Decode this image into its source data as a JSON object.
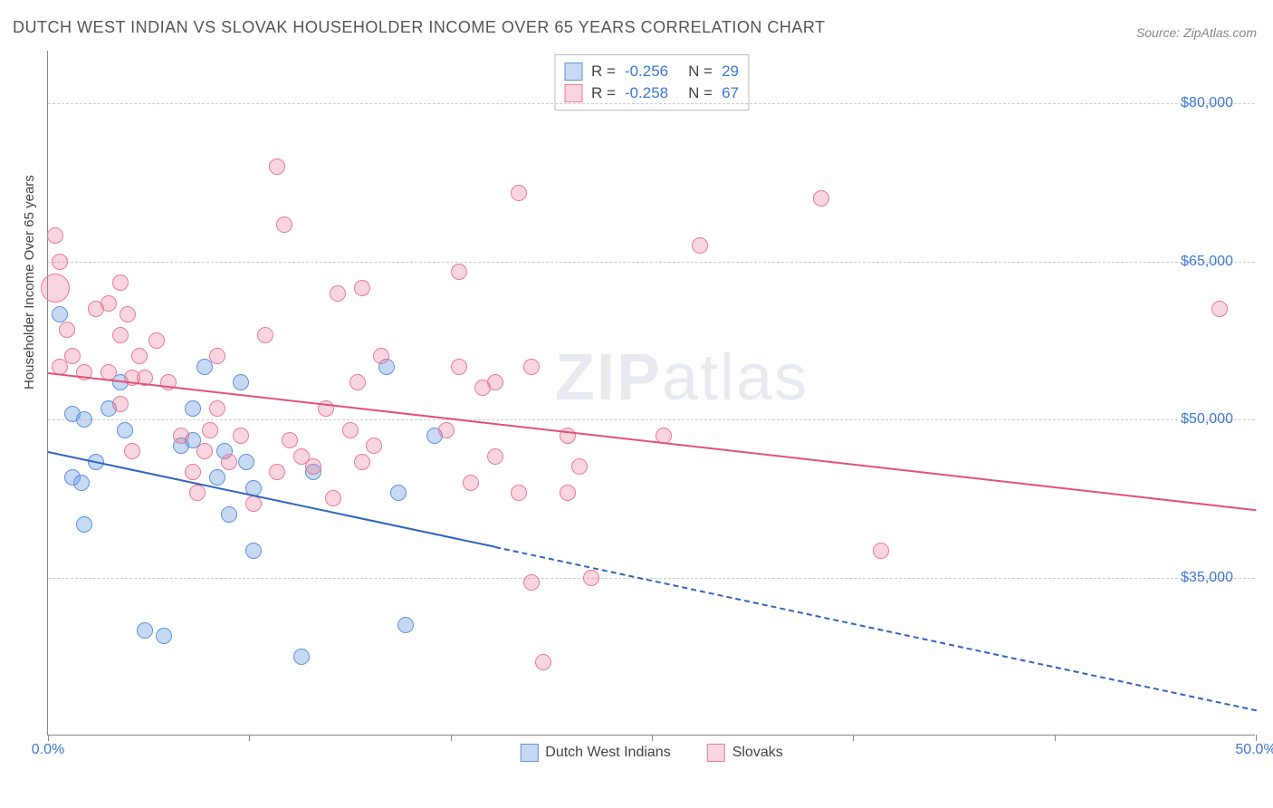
{
  "title": "DUTCH WEST INDIAN VS SLOVAK HOUSEHOLDER INCOME OVER 65 YEARS CORRELATION CHART",
  "source": "Source: ZipAtlas.com",
  "ylabel": "Householder Income Over 65 years",
  "watermark_bold": "ZIP",
  "watermark_rest": "atlas",
  "chart": {
    "type": "scatter",
    "xlim": [
      0,
      50
    ],
    "ylim": [
      20000,
      85000
    ],
    "x_ticks": [
      0,
      8.33,
      16.67,
      25,
      33.33,
      41.67,
      50
    ],
    "x_tick_labels": [
      "0.0%",
      "",
      "",
      "",
      "",
      "",
      "50.0%"
    ],
    "y_grid": [
      35000,
      50000,
      65000,
      80000
    ],
    "y_grid_labels": [
      "$35,000",
      "$50,000",
      "$65,000",
      "$80,000"
    ],
    "background_color": "#ffffff",
    "grid_color": "#cccccc",
    "series": [
      {
        "name": "Dutch West Indians",
        "color_fill": "rgba(94,146,220,0.35)",
        "color_stroke": "#5e92dc",
        "r_value": "-0.256",
        "n_value": "29",
        "marker_radius": 9,
        "trend": {
          "x1": 0,
          "y1": 47000,
          "x2": 18.5,
          "y2": 38000,
          "color": "#2f63c0",
          "width": 2,
          "dash_after_x": 18.5,
          "dash_x2": 50,
          "dash_y2": 22500
        },
        "points": [
          [
            0.5,
            60000
          ],
          [
            1.0,
            50500
          ],
          [
            1.5,
            50000
          ],
          [
            1.0,
            44500
          ],
          [
            1.4,
            44000
          ],
          [
            2.0,
            46000
          ],
          [
            1.5,
            40000
          ],
          [
            2.5,
            51000
          ],
          [
            3.0,
            53500
          ],
          [
            4.0,
            30000
          ],
          [
            4.8,
            29500
          ],
          [
            5.5,
            47500
          ],
          [
            6.0,
            48000
          ],
          [
            6.5,
            55000
          ],
          [
            7.0,
            44500
          ],
          [
            7.3,
            47000
          ],
          [
            7.5,
            41000
          ],
          [
            8.0,
            53500
          ],
          [
            8.2,
            46000
          ],
          [
            8.5,
            37500
          ],
          [
            8.5,
            43500
          ],
          [
            10.5,
            27500
          ],
          [
            11.0,
            45000
          ],
          [
            14.0,
            55000
          ],
          [
            14.5,
            43000
          ],
          [
            14.8,
            30500
          ],
          [
            16.0,
            48500
          ],
          [
            6.0,
            51000
          ],
          [
            3.2,
            49000
          ]
        ]
      },
      {
        "name": "Slovaks",
        "color_fill": "rgba(235,120,150,0.30)",
        "color_stroke": "#eb7896",
        "r_value": "-0.258",
        "n_value": "67",
        "marker_radius": 9,
        "trend": {
          "x1": 0,
          "y1": 54500,
          "x2": 50,
          "y2": 41500,
          "color": "#e15179",
          "width": 2
        },
        "points": [
          [
            0.3,
            67500
          ],
          [
            0.3,
            62500,
            16
          ],
          [
            0.5,
            65000
          ],
          [
            0.8,
            58500
          ],
          [
            0.5,
            55000
          ],
          [
            1.0,
            56000
          ],
          [
            1.5,
            54500
          ],
          [
            2.0,
            60500
          ],
          [
            2.5,
            54500
          ],
          [
            2.5,
            61000
          ],
          [
            3.0,
            63000
          ],
          [
            3.3,
            60000
          ],
          [
            3.5,
            54000
          ],
          [
            3.8,
            56000
          ],
          [
            3.0,
            58000
          ],
          [
            4.0,
            54000
          ],
          [
            4.5,
            57500
          ],
          [
            3.0,
            51500
          ],
          [
            3.5,
            47000
          ],
          [
            5.0,
            53500
          ],
          [
            5.5,
            48500
          ],
          [
            6.0,
            45000
          ],
          [
            6.5,
            47000
          ],
          [
            6.7,
            49000
          ],
          [
            7.0,
            51000
          ],
          [
            7.0,
            56000
          ],
          [
            7.5,
            46000
          ],
          [
            8.0,
            48500
          ],
          [
            8.5,
            42000
          ],
          [
            9.0,
            58000
          ],
          [
            9.5,
            74000
          ],
          [
            9.8,
            68500
          ],
          [
            10.0,
            48000
          ],
          [
            10.5,
            46500
          ],
          [
            11.0,
            45500
          ],
          [
            11.5,
            51000
          ],
          [
            11.8,
            42500
          ],
          [
            12.0,
            62000
          ],
          [
            12.5,
            49000
          ],
          [
            12.8,
            53500
          ],
          [
            13.0,
            46000
          ],
          [
            13.5,
            47500
          ],
          [
            13.8,
            56000
          ],
          [
            16.5,
            49000
          ],
          [
            17.0,
            64000
          ],
          [
            17.0,
            55000
          ],
          [
            17.5,
            44000
          ],
          [
            18.0,
            53000
          ],
          [
            18.5,
            53500
          ],
          [
            18.5,
            46500
          ],
          [
            19.5,
            71500
          ],
          [
            19.5,
            43000
          ],
          [
            20.0,
            34500
          ],
          [
            20.0,
            55000
          ],
          [
            20.5,
            27000
          ],
          [
            21.5,
            43000
          ],
          [
            21.5,
            48500
          ],
          [
            22.0,
            45500
          ],
          [
            22.5,
            35000
          ],
          [
            25.5,
            48500
          ],
          [
            27.0,
            66500
          ],
          [
            32.0,
            71000
          ],
          [
            34.5,
            37500
          ],
          [
            48.5,
            60500
          ],
          [
            13.0,
            62500
          ],
          [
            9.5,
            45000
          ],
          [
            6.2,
            43000
          ]
        ]
      }
    ]
  },
  "bottom_legend": [
    {
      "label": "Dutch West Indians",
      "fill": "rgba(94,146,220,0.35)",
      "stroke": "#5e92dc"
    },
    {
      "label": "Slovaks",
      "fill": "rgba(235,120,150,0.30)",
      "stroke": "#eb7896"
    }
  ]
}
